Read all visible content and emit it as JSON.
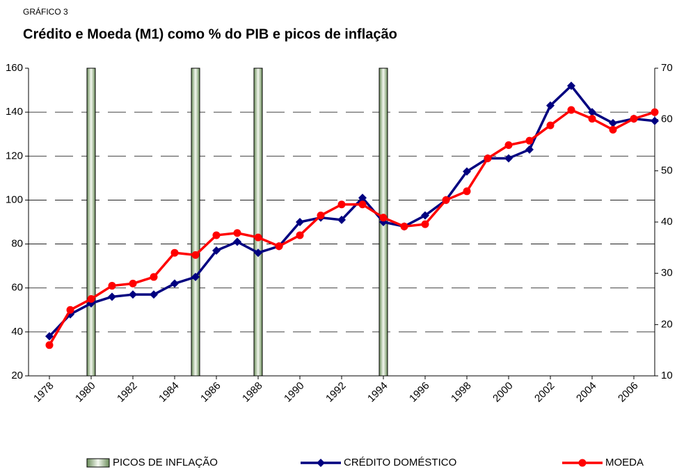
{
  "chart_data": {
    "type": "line",
    "kicker": "GRÁFICO 3",
    "title": "Crédito e Moeda (M1) como % do PIB e picos de inflação",
    "x": [
      1978,
      1979,
      1980,
      1981,
      1982,
      1983,
      1984,
      1985,
      1986,
      1987,
      1988,
      1989,
      1990,
      1991,
      1992,
      1993,
      1994,
      1995,
      1996,
      1997,
      1998,
      1999,
      2000,
      2001,
      2002,
      2003,
      2004,
      2005,
      2006,
      2007
    ],
    "series": [
      {
        "name": "CRÉDITO DOMÉSTICO",
        "color": "#000080",
        "marker": "diamond",
        "values": [
          38,
          48,
          53,
          56,
          57,
          57,
          62,
          65,
          77,
          81,
          76,
          79,
          90,
          92,
          91,
          101,
          90,
          88,
          93,
          100,
          113,
          119,
          119,
          123,
          143,
          152,
          140,
          135,
          137,
          136
        ]
      },
      {
        "name": "MOEDA",
        "color": "#ff0000",
        "marker": "circle",
        "values": [
          34,
          50,
          55,
          61,
          62,
          65,
          76,
          75,
          84,
          85,
          83,
          79,
          84,
          93,
          98,
          98,
          92,
          88,
          89,
          100,
          104,
          119,
          125,
          127,
          134,
          141,
          137,
          132,
          137,
          140
        ]
      }
    ],
    "bands": {
      "name": "PICOS DE INFLAÇÃO",
      "color": "#6b8e5a",
      "x": [
        1980,
        1985,
        1988,
        1994
      ]
    },
    "xlim": [
      1977,
      2007
    ],
    "xticks": [
      1978,
      1980,
      1982,
      1984,
      1986,
      1988,
      1990,
      1992,
      1994,
      1996,
      1998,
      2000,
      2002,
      2004,
      2006
    ],
    "ylim": [
      20,
      160
    ],
    "yticks": [
      20,
      40,
      60,
      80,
      100,
      120,
      140,
      160
    ],
    "y2lim": [
      10,
      70
    ],
    "y2ticks": [
      10,
      20,
      30,
      40,
      50,
      60,
      70
    ],
    "grid": true
  }
}
